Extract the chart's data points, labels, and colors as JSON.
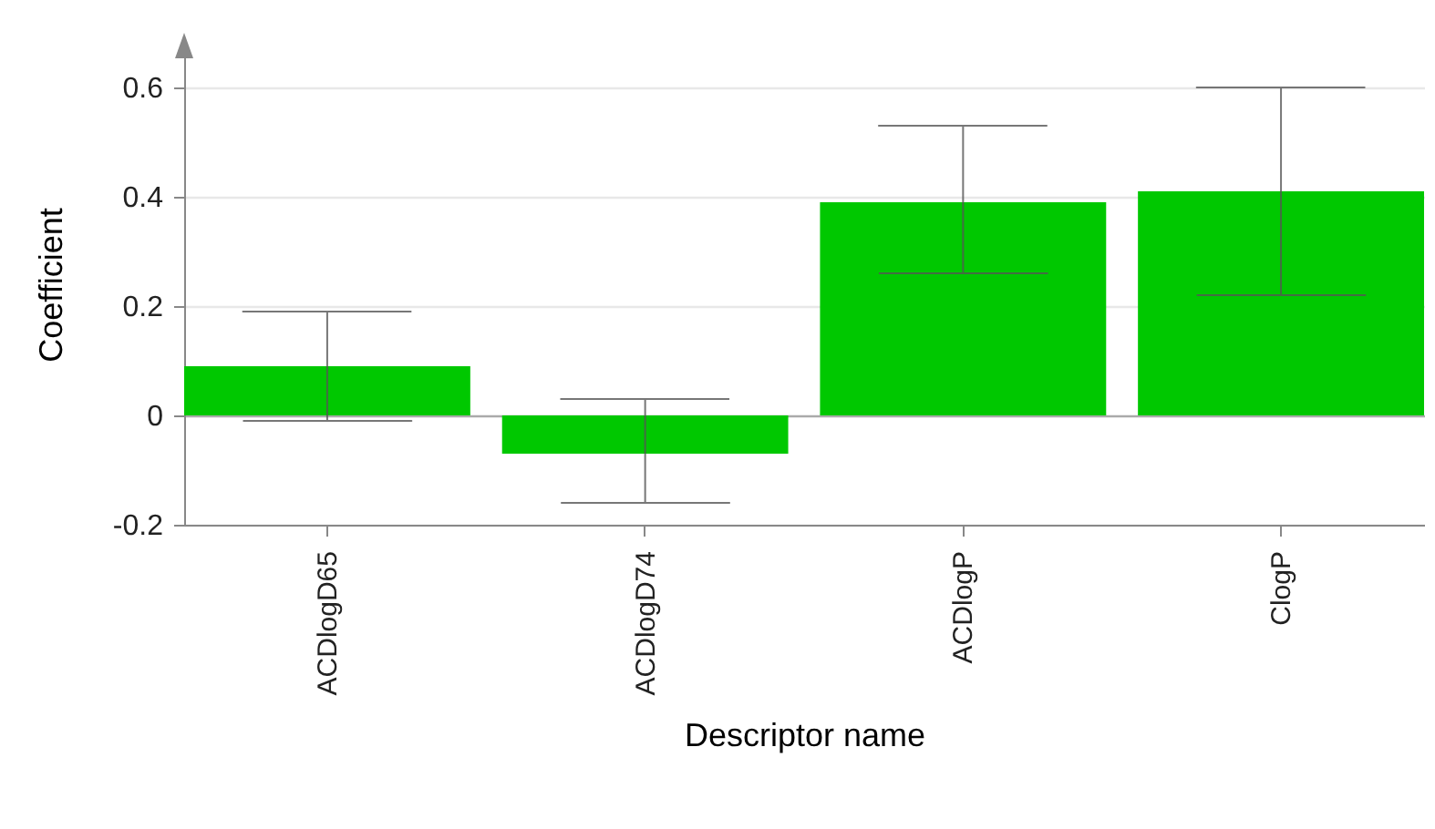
{
  "chart_data": {
    "type": "bar",
    "xlabel": "Descriptor name",
    "ylabel": "Coefficient",
    "categories": [
      "ACDlogD65",
      "ACDlogD74",
      "ACDlogP",
      "ClogP"
    ],
    "values": [
      0.09,
      -0.07,
      0.39,
      0.41
    ],
    "color": "#00c800",
    "errors": [
      [
        -0.01,
        0.19
      ],
      [
        -0.16,
        0.03
      ],
      [
        0.26,
        0.53
      ],
      [
        0.22,
        0.6
      ]
    ],
    "ylim": [
      -0.2,
      0.68
    ],
    "yticks": [
      -0.2,
      0,
      0.2,
      0.4,
      0.6
    ],
    "grid": "y"
  }
}
